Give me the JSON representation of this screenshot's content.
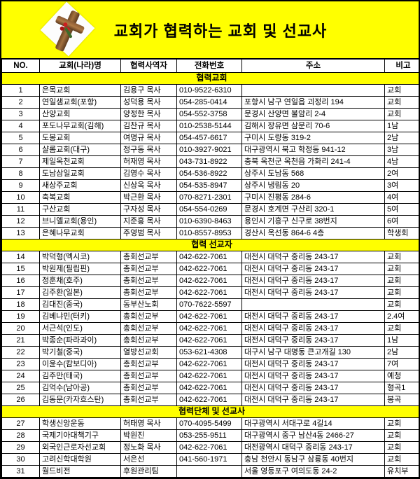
{
  "title": "교회가 협력하는 교회 및 선교사",
  "colors": {
    "banner_bg": "#FFFF00",
    "section_bg": "#FFFF00",
    "border": "#000000",
    "row_bg": "#FFFFFF",
    "text": "#000000"
  },
  "icons": {
    "badge": "wooden-cross-photo"
  },
  "columns": [
    "NO.",
    "교회(나라)명",
    "협력사역자",
    "전화번호",
    "주소",
    "비고"
  ],
  "sections": [
    {
      "label": "협력교회",
      "rows": [
        [
          "1",
          "은목교회",
          "김용구 목사",
          "010-9522-6310",
          "",
          "교회"
        ],
        [
          "2",
          "연일샘교회(포항)",
          "성덕용 목사",
          "054-285-0414",
          "포항시 남구 연일읍 괴정리 194",
          "교회"
        ],
        [
          "3",
          "산양교회",
          "양정한 목사",
          "054-552-3758",
          "문경시 산양면 불암리 2-4",
          "교회"
        ],
        [
          "4",
          "포도나무교회(김해)",
          "김찬규 목사",
          "010-2538-5144",
          "김해시 장유면 삼문리 70-6",
          "1남"
        ],
        [
          "5",
          "도봉교회",
          "여명규 목사",
          "054-457-6617",
          "구미시 도량동 319-2",
          "2남"
        ],
        [
          "6",
          "샬롬교회(대구)",
          "정구동 목사",
          "010-3927-9021",
          "대구광역시 북고 학정동 941-12",
          "3남"
        ],
        [
          "7",
          "제일옥천교회",
          "허재영 목사",
          "043-731-8922",
          "충북 옥천군 옥천읍 가화리 241-4",
          "4남"
        ],
        [
          "8",
          "도남삼일교회",
          "김영수 목사",
          "054-536-8922",
          "상주시 도남동 568",
          "2여"
        ],
        [
          "9",
          "새상주교회",
          "신상옥 목사",
          "054-535-8947",
          "상주시 냉림동 20",
          "3여"
        ],
        [
          "10",
          "축복교회",
          "박근환 목사",
          "070-8271-2301",
          "구미시 진평동 284-6",
          "4여"
        ],
        [
          "11",
          "구산교회",
          "구자성 목사",
          "054-554-0269",
          "문경시 호계면 구산리 320-1",
          "5여"
        ],
        [
          "12",
          "브니엘교회(용인)",
          "지준홍 목사",
          "010-6390-8463",
          "용인시 기흥구 신구로 38번지",
          "6여"
        ],
        [
          "13",
          "은혜나무교회",
          "주영범 목사",
          "010-8557-8953",
          "경산시 옥선동 864-6 4층",
          "학생회"
        ]
      ]
    },
    {
      "label": "협력 선교자",
      "rows": [
        [
          "14",
          "박덕형(멕시코)",
          "총회선교부",
          "042-622-7061",
          "대전시 대덕구 중리동 243-17",
          "교회"
        ],
        [
          "15",
          "박원제(필립핀)",
          "총회선교부",
          "042-622-7061",
          "대전시 대덕구 중리동 243-17",
          "교회"
        ],
        [
          "16",
          "정훈채(호주)",
          "총회선교부",
          "042-622-7061",
          "대전시 대덕구 중리동 243-17",
          "교회"
        ],
        [
          "17",
          "김주환(일본)",
          "총회선교부",
          "042-622-7061",
          "대전시 대덕구 중리동 243-17",
          "교회"
        ],
        [
          "18",
          "김대진(중국)",
          "동부산노회",
          "070-7622-5597",
          "",
          "교회"
        ],
        [
          "19",
          "김베냐민(터키)",
          "총회선교부",
          "042-622-7061",
          "대전시 대덕구 중리동 243-17",
          "2.4여"
        ],
        [
          "20",
          "서근석(인도)",
          "총회선교부",
          "042-622-7061",
          "대전시 대덕구 중리동 243-17",
          "교회"
        ],
        [
          "21",
          "박종순(파라과이)",
          "총회선교부",
          "042-622-7061",
          "대전시 대덕구 중리동 243-17",
          "1남"
        ],
        [
          "22",
          "박기철(중국)",
          "열방선교회",
          "053-621-4308",
          "대구시 남구 대명동 큰고개길 130",
          "2남"
        ],
        [
          "23",
          "이윤수(캄보디아)",
          "총회선교부",
          "042-622-7061",
          "대전시 대덕구 중리동 243-17",
          "7여"
        ],
        [
          "24",
          "김주만(태국)",
          "총회선교부",
          "042-622-7061",
          "대전시 대덕구 중리동 243-17",
          "예청"
        ],
        [
          "25",
          "김억수(남아공)",
          "총회선교부",
          "042-622-7061",
          "대전시 대덕구 중리동 243-17",
          "형곡1"
        ],
        [
          "26",
          "김동문(카자흐스탄)",
          "총회선교부",
          "042-622-7061",
          "대전시 대덕구 중리동 243-17",
          "봉곡"
        ]
      ]
    },
    {
      "label": "협력단체 및 선교사",
      "rows": [
        [
          "27",
          "학생신앙운동",
          "허태영 목사",
          "070-4095-5499",
          "대구광역시 서대구로 4길14",
          "교회"
        ],
        [
          "28",
          "국제기아대책기구",
          "박원진",
          "053-255-9511",
          "대구광역시 중구 남산4동 2466-27",
          "교회"
        ],
        [
          "29",
          "외국인근로자선교회",
          "정노화 목사",
          "042-622-7061",
          "대전광역시 대덕구 중리동 243-17",
          "교회"
        ],
        [
          "30",
          "고려신학대학원",
          "서은선",
          "041-560-1971",
          "충남 천안시 동남구 삼룡동 40번지",
          "교회"
        ],
        [
          "31",
          "월드비전",
          "후원관리팀",
          "",
          "서울 영등포구 여의도동 24-2",
          "유치부"
        ]
      ]
    }
  ]
}
